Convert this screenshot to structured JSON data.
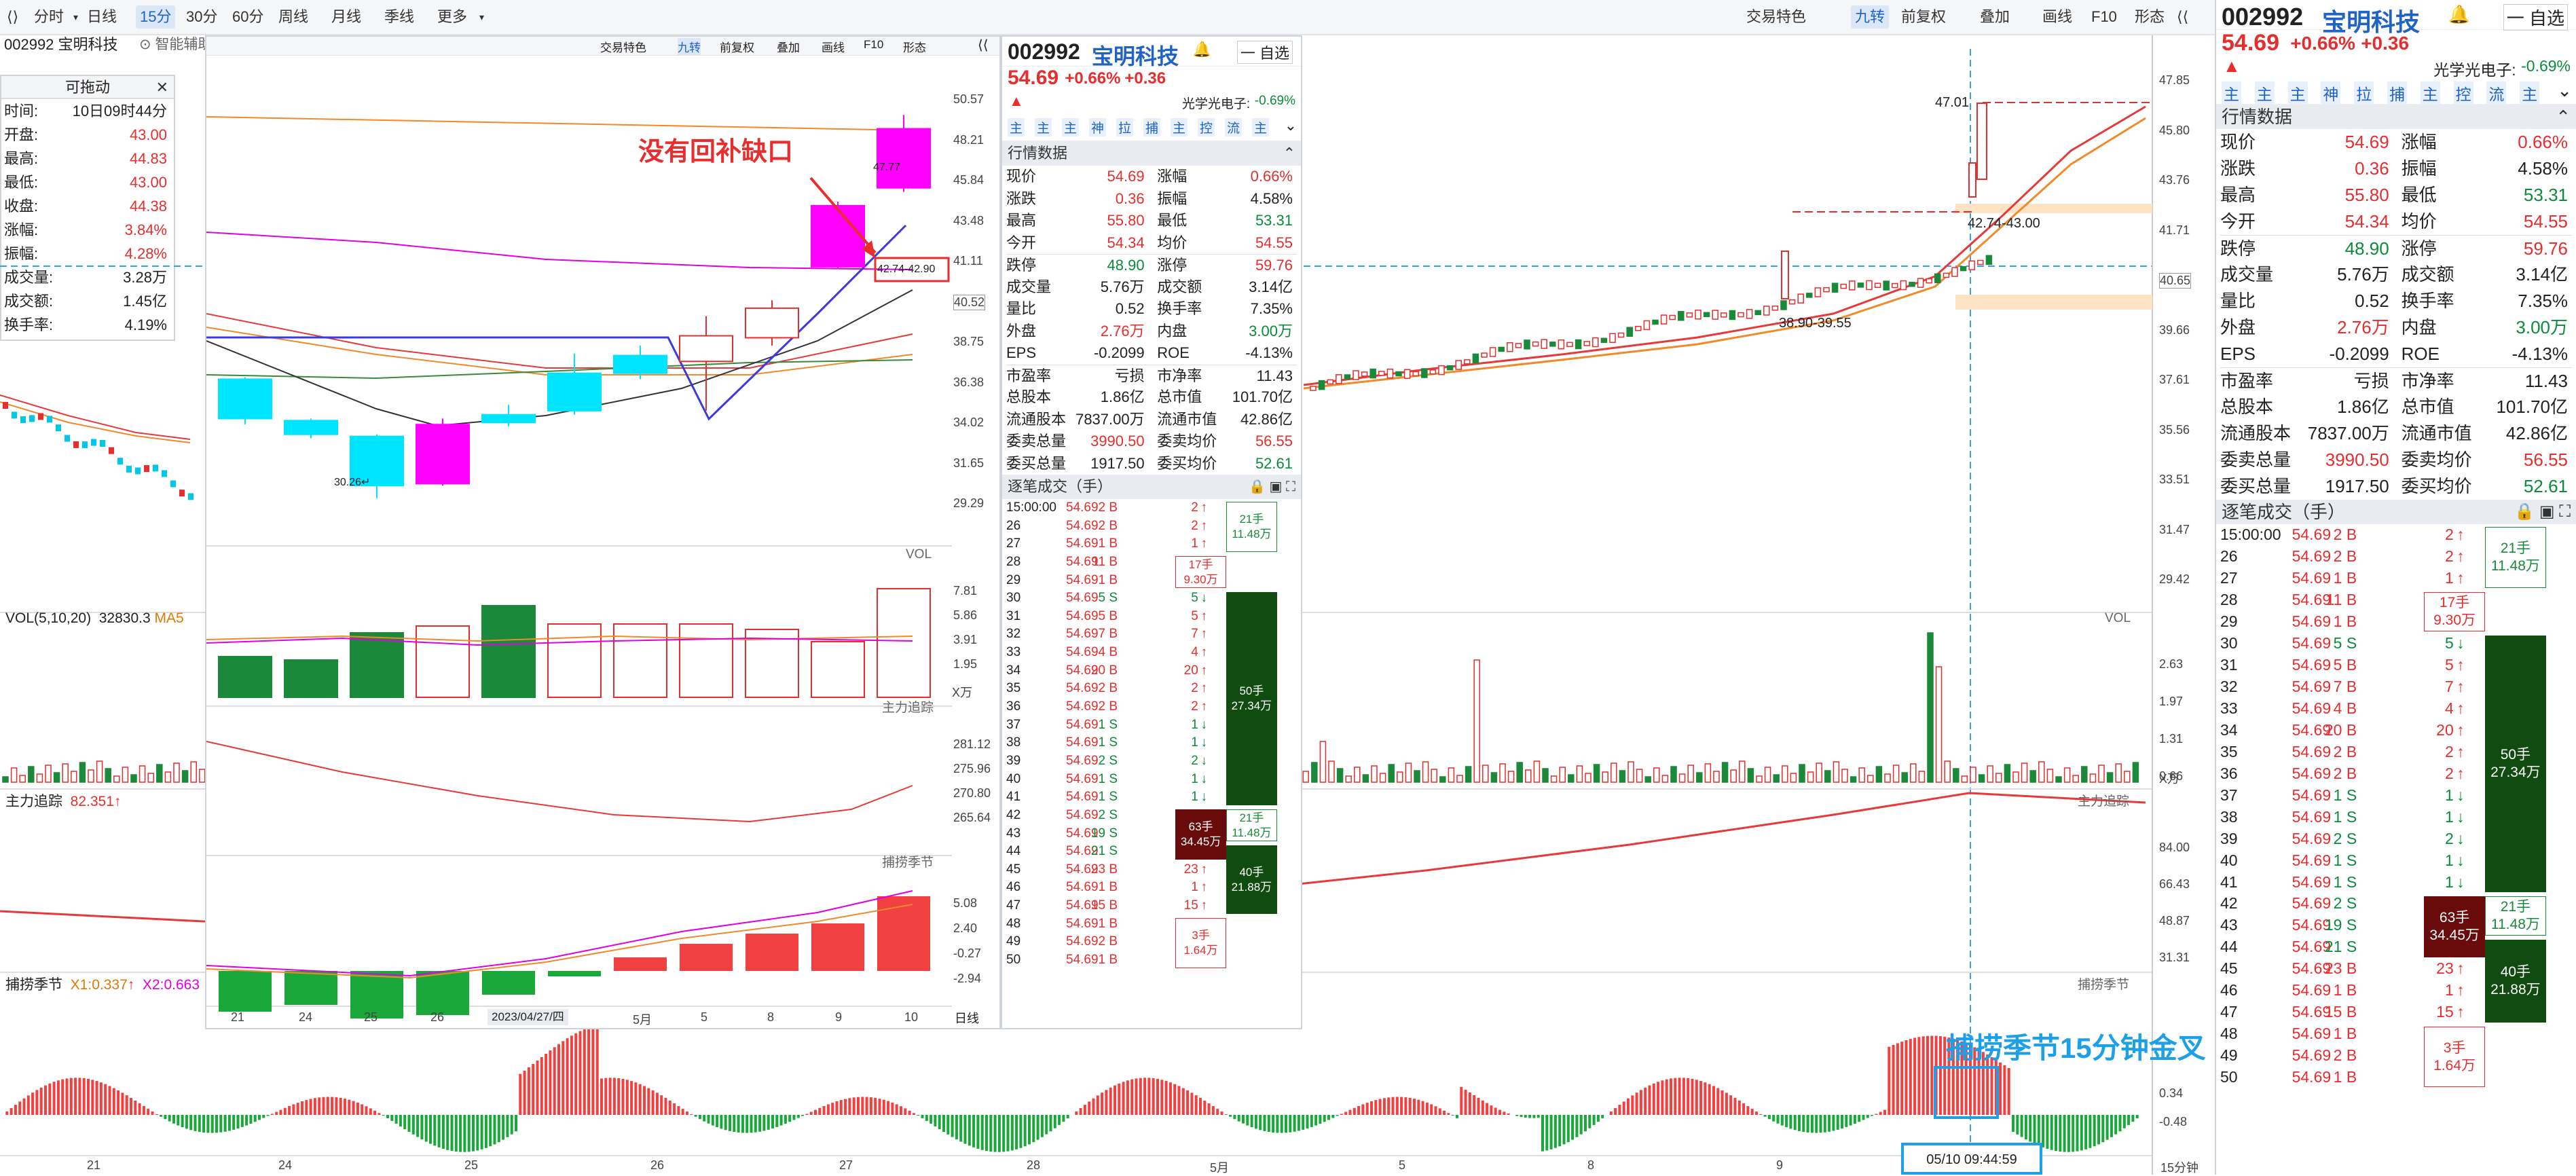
{
  "toolbar": {
    "left": [
      "分时",
      "日线",
      "15分",
      "30分",
      "60分",
      "周线",
      "月线",
      "季线",
      "更多"
    ],
    "active": "15分",
    "right": [
      "交易特色",
      "九转",
      "前复权",
      "叠加",
      "画线",
      "F10",
      "形态"
    ]
  },
  "stock": {
    "code": "002992",
    "name": "宝明科技",
    "price": "54.69",
    "change": "+0.66%",
    "change_abs": "+0.36",
    "sector": "光学光电子:",
    "sector_change": "-0.69%",
    "watch": "一 自选"
  },
  "indicator_row": [
    "主",
    "主",
    "主",
    "神",
    "拉",
    "捕",
    "主",
    "控",
    "流",
    "主"
  ],
  "quote_title": "行情数据",
  "quote_rows": [
    [
      "现价",
      "54.69",
      "涨幅",
      "0.66%"
    ],
    [
      "涨跌",
      "0.36",
      "振幅",
      "4.58%"
    ],
    [
      "最高",
      "55.80",
      "最低",
      "53.31"
    ],
    [
      "今开",
      "54.34",
      "均价",
      "54.55"
    ],
    [
      "跌停",
      "48.90",
      "涨停",
      "59.76"
    ],
    [
      "成交量",
      "5.76万",
      "成交额",
      "3.14亿"
    ],
    [
      "量比",
      "0.52",
      "换手率",
      "7.35%"
    ],
    [
      "外盘",
      "2.76万",
      "内盘",
      "3.00万"
    ],
    [
      "EPS",
      "-0.2099",
      "ROE",
      "-4.13%"
    ],
    [
      "市盈率",
      "亏损",
      "市净率",
      "11.43"
    ],
    [
      "总股本",
      "1.86亿",
      "总市值",
      "101.70亿"
    ],
    [
      "流通股本",
      "7837.00万",
      "流通市值",
      "42.86亿"
    ],
    [
      "委卖总量",
      "3990.50",
      "委卖均价",
      "56.55"
    ],
    [
      "委买总量",
      "1917.50",
      "委买均价",
      "52.61"
    ]
  ],
  "trades_title": "逐笔成交（手）",
  "trades": [
    [
      "15:00:00",
      "54.69",
      "2 B",
      "2"
    ],
    [
      "26",
      "54.69",
      "2 B",
      "2"
    ],
    [
      "27",
      "54.69",
      "1 B",
      "1"
    ],
    [
      "28",
      "54.69",
      "11 B",
      "11"
    ],
    [
      "29",
      "54.69",
      "1 B",
      "1"
    ],
    [
      "30",
      "54.69",
      "5 S",
      "5"
    ],
    [
      "31",
      "54.69",
      "5 B",
      "5"
    ],
    [
      "32",
      "54.69",
      "7 B",
      "7"
    ],
    [
      "33",
      "54.69",
      "4 B",
      "4"
    ],
    [
      "34",
      "54.69",
      "20 B",
      "20"
    ],
    [
      "35",
      "54.69",
      "2 B",
      "2"
    ],
    [
      "36",
      "54.69",
      "2 B",
      "2"
    ],
    [
      "37",
      "54.69",
      "1 S",
      "1"
    ],
    [
      "38",
      "54.69",
      "1 S",
      "1"
    ],
    [
      "39",
      "54.69",
      "2 S",
      "2"
    ],
    [
      "40",
      "54.69",
      "1 S",
      "1"
    ],
    [
      "41",
      "54.69",
      "1 S",
      "1"
    ],
    [
      "42",
      "54.69",
      "2 S",
      "2"
    ],
    [
      "43",
      "54.69",
      "19 S",
      "19"
    ],
    [
      "44",
      "54.69",
      "21 S",
      "21"
    ],
    [
      "45",
      "54.69",
      "23 B",
      "23"
    ],
    [
      "46",
      "54.69",
      "1 B",
      "1"
    ],
    [
      "47",
      "54.69",
      "15 B",
      "15"
    ],
    [
      "48",
      "54.69",
      "1 B",
      "1"
    ],
    [
      "49",
      "54.69",
      "2 B",
      "2"
    ],
    [
      "50",
      "54.69",
      "1 B",
      "1"
    ]
  ],
  "trade_blocks": [
    {
      "t1": "21手",
      "t2": "11.48万"
    },
    {
      "t1": "17手",
      "t2": "9.30万"
    },
    {
      "t1": "50手",
      "t2": "27.34万"
    },
    {
      "t1": "21手",
      "t2": "11.48万"
    },
    {
      "t1": "63手",
      "t2": "34.45万"
    },
    {
      "t1": "40手",
      "t2": "21.88万"
    },
    {
      "t1": "3手",
      "t2": "1.64万"
    }
  ],
  "popup": {
    "title": "可拖动",
    "close": "✕",
    "rows": [
      [
        "时间:",
        "10日09时44分"
      ],
      [
        "开盘:",
        "43.00"
      ],
      [
        "最高:",
        "44.83"
      ],
      [
        "最低:",
        "43.00"
      ],
      [
        "收盘:",
        "44.38"
      ],
      [
        "涨幅:",
        "3.84%"
      ],
      [
        "振幅:",
        "4.28%"
      ],
      [
        "成交量:",
        "3.28万"
      ],
      [
        "成交额:",
        "1.45亿"
      ],
      [
        "换手率:",
        "4.19%"
      ]
    ]
  },
  "header_stock_left": "002992 宝明科技",
  "smart_label": "智能辅助",
  "annotations": {
    "no_fill": "没有回补缺口",
    "golden_cross": "捕捞季节15分钟金叉"
  },
  "labels": {
    "vol": "VOL",
    "vol_main": "VOL(5,10,20)",
    "vol_val": "32830.3",
    "ma5": "MA5",
    "zhuli": "主力追踪",
    "zhuli_val": "82.351",
    "bulao": "捕捞季节",
    "x1": "X1:0.337",
    "x2": "X2:0.663",
    "x_wan": "X万",
    "daily": "日线",
    "date_box": "2023/04/27/四",
    "time_box": "05/10 09:44:59",
    "min15": "15分钟",
    "price_47": "47.01",
    "price_4274": "42.74-43.00",
    "price_3890": "38.90-39.55",
    "price_3026": "30.26",
    "inset_4274": "42.74-42.90",
    "inset_4777": "47.77"
  },
  "right_price_axis": [
    "47.85",
    "45.80",
    "43.76",
    "41.71",
    "40.65",
    "39.66",
    "37.61",
    "35.56",
    "33.51",
    "31.47",
    "29.42"
  ],
  "right_vol_axis": [
    "2.63",
    "1.97",
    "1.31",
    "0.66"
  ],
  "right_zl_axis": [
    "84.00",
    "66.43",
    "48.87",
    "31.31"
  ],
  "right_bl_axis": [
    "0.34",
    "-0.48"
  ],
  "inset_price_axis": [
    "50.57",
    "48.21",
    "45.84",
    "43.48",
    "41.11",
    "40.52",
    "38.75",
    "36.38",
    "34.02",
    "31.65",
    "29.29"
  ],
  "inset_vol_axis": [
    "7.81",
    "5.86",
    "3.91",
    "1.95"
  ],
  "inset_zl_axis": [
    "281.12",
    "275.96",
    "270.80",
    "265.64"
  ],
  "inset_bl_axis": [
    "5.08",
    "2.40",
    "-0.27",
    "-2.94"
  ],
  "inset_x_dates": [
    "21",
    "24",
    "25",
    "26",
    "5月",
    "5",
    "8",
    "9",
    "10"
  ],
  "bottom_dates": [
    "21",
    "24",
    "25",
    "26",
    "27",
    "28",
    "5月",
    "5",
    "8",
    "9"
  ],
  "chart_data": {
    "type": "candlestick",
    "inset_daily_candles": [
      {
        "o": 36.3,
        "c": 34.3,
        "h": 36.4,
        "l": 34.0
      },
      {
        "o": 34.2,
        "c": 33.5,
        "h": 34.3,
        "l": 33.3
      },
      {
        "o": 33.4,
        "c": 30.9,
        "h": 33.5,
        "l": 30.26
      },
      {
        "o": 31.0,
        "c": 34.0,
        "h": 34.3,
        "l": 30.9
      },
      {
        "o": 34.1,
        "c": 34.5,
        "h": 35.0,
        "l": 33.9
      },
      {
        "o": 34.7,
        "c": 36.6,
        "h": 37.6,
        "l": 34.5
      },
      {
        "o": 36.6,
        "c": 37.5,
        "h": 38.0,
        "l": 36.3
      },
      {
        "o": 37.2,
        "c": 38.5,
        "h": 39.5,
        "l": 34.7
      },
      {
        "o": 38.4,
        "c": 39.9,
        "h": 40.3,
        "l": 38.0
      },
      {
        "o": 42.0,
        "c": 45.1,
        "h": 45.3,
        "l": 41.9
      },
      {
        "o": 46.0,
        "c": 49.0,
        "h": 49.7,
        "l": 45.8
      }
    ]
  }
}
